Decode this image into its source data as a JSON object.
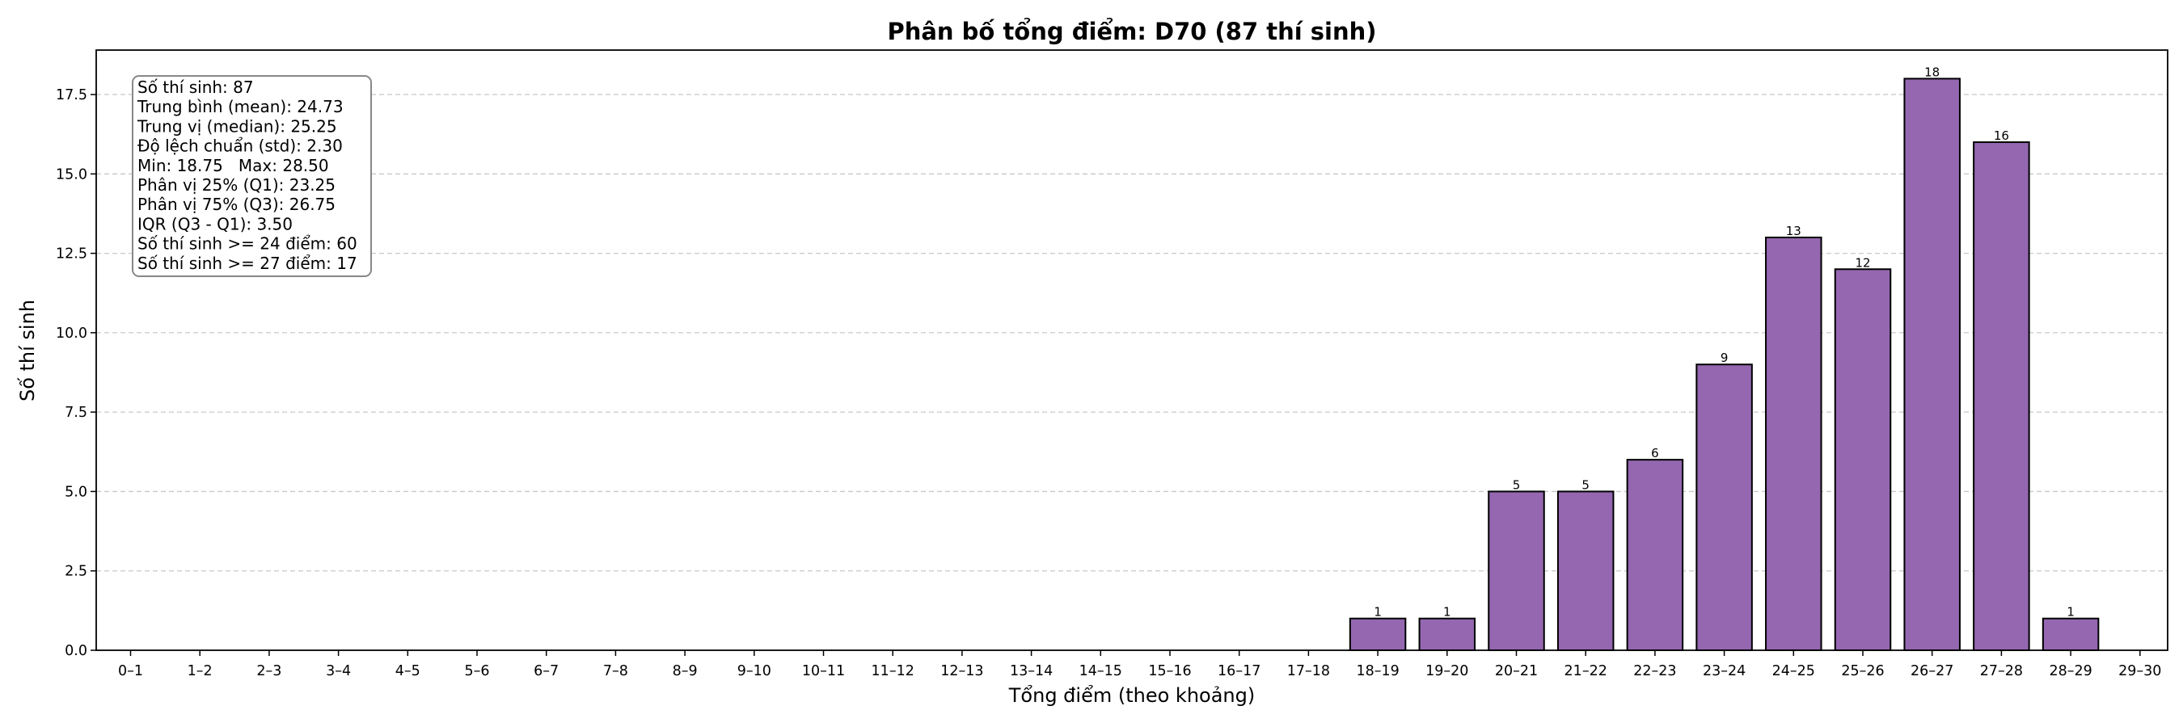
{
  "chart_data": {
    "type": "bar",
    "title": "Phân bố tổng điểm: D70 (87 thí sinh)",
    "xlabel": "Tổng điểm (theo khoảng)",
    "ylabel": "Số thí sinh",
    "categories": [
      "0–1",
      "1–2",
      "2–3",
      "3–4",
      "4–5",
      "5–6",
      "6–7",
      "7–8",
      "8–9",
      "9–10",
      "10–11",
      "11–12",
      "12–13",
      "13–14",
      "14–15",
      "15–16",
      "16–17",
      "17–18",
      "18–19",
      "19–20",
      "20–21",
      "21–22",
      "22–23",
      "23–24",
      "24–25",
      "25–26",
      "26–27",
      "27–28",
      "28–29",
      "29–30"
    ],
    "values": [
      0,
      0,
      0,
      0,
      0,
      0,
      0,
      0,
      0,
      0,
      0,
      0,
      0,
      0,
      0,
      0,
      0,
      0,
      1,
      1,
      5,
      5,
      6,
      9,
      13,
      12,
      18,
      16,
      1,
      0
    ],
    "ylim": [
      0,
      18.9
    ],
    "yticks": [
      "0.0",
      "2.5",
      "5.0",
      "7.5",
      "10.0",
      "12.5",
      "15.0",
      "17.5"
    ],
    "grid": "y-dashed",
    "bar_color": "#9467b0",
    "bar_edge_color": "#000000",
    "stats_box": [
      "Số thí sinh: 87",
      "Trung bình (mean): 24.73",
      "Trung vị (median): 25.25",
      "Độ lệch chuẩn (std): 2.30",
      "Min: 18.75   Max: 28.50",
      "Phân vị 25% (Q1): 23.25",
      "Phân vị 75% (Q3): 26.75",
      "IQR (Q3 - Q1): 3.50",
      "Số thí sinh >= 24 điểm: 60",
      "Số thí sinh >= 27 điểm: 17"
    ]
  }
}
